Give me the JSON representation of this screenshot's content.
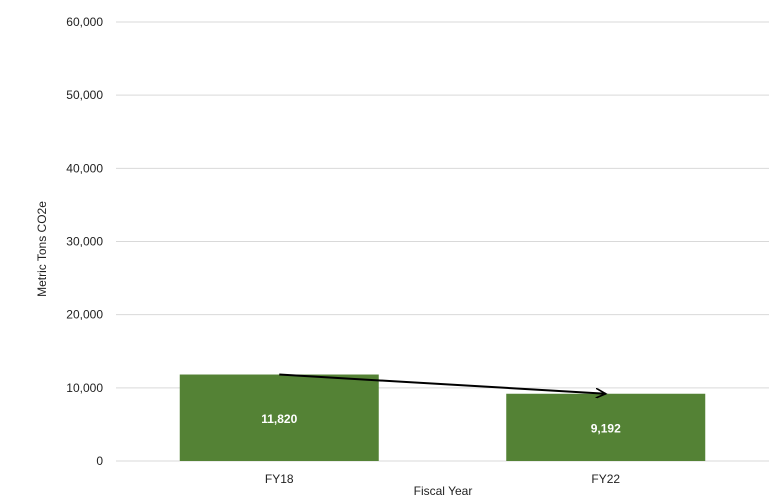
{
  "chart_data": {
    "type": "bar",
    "categories": [
      "FY18",
      "FY22"
    ],
    "values": [
      11820,
      9192
    ],
    "data_labels": [
      "11,820",
      "9,192"
    ],
    "xlabel": "Fiscal Year",
    "ylabel": "Metric Tons CO2e",
    "ylim": [
      0,
      60000
    ],
    "yticks": [
      0,
      10000,
      20000,
      30000,
      40000,
      50000,
      60000
    ],
    "ytick_labels": [
      "0",
      "10,000",
      "20,000",
      "30,000",
      "40,000",
      "50,000",
      "60,000"
    ],
    "grid": true,
    "legend": "none",
    "bar_color": "#548235",
    "gridline_color": "#d9d9d9",
    "trend_arrow": {
      "from": "FY18",
      "to": "FY22",
      "color": "#000000"
    }
  }
}
